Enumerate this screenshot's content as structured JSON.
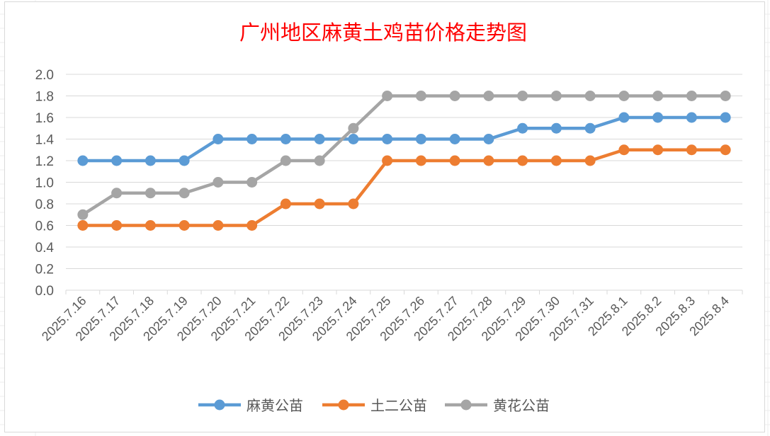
{
  "chart_data": {
    "type": "line",
    "title": "广州地区麻黄土鸡苗价格走势图",
    "xlabel": "",
    "ylabel": "",
    "ylim": [
      0,
      2.0
    ],
    "yticks": [
      "0.0",
      "0.2",
      "0.4",
      "0.6",
      "0.8",
      "1.0",
      "1.2",
      "1.4",
      "1.6",
      "1.8",
      "2.0"
    ],
    "grid": true,
    "legend": "bottom",
    "categories": [
      "2025.7.16",
      "2025.7.17",
      "2025.7.18",
      "2025.7.19",
      "2025.7.20",
      "2025.7.21",
      "2025.7.22",
      "2025.7.23",
      "2025.7.24",
      "2025.7.25",
      "2025.7.26",
      "2025.7.27",
      "2025.7.28",
      "2025.7.29",
      "2025.7.30",
      "2025.7.31",
      "2025.8.1",
      "2025.8.2",
      "2025.8.3",
      "2025.8.4"
    ],
    "series": [
      {
        "name": "麻黄公苗",
        "color": "#5b9bd5",
        "values": [
          1.2,
          1.2,
          1.2,
          1.2,
          1.4,
          1.4,
          1.4,
          1.4,
          1.4,
          1.4,
          1.4,
          1.4,
          1.4,
          1.5,
          1.5,
          1.5,
          1.6,
          1.6,
          1.6,
          1.6
        ]
      },
      {
        "name": "土二公苗",
        "color": "#ed7d31",
        "values": [
          0.6,
          0.6,
          0.6,
          0.6,
          0.6,
          0.6,
          0.8,
          0.8,
          0.8,
          1.2,
          1.2,
          1.2,
          1.2,
          1.2,
          1.2,
          1.2,
          1.3,
          1.3,
          1.3,
          1.3
        ]
      },
      {
        "name": "黄花公苗",
        "color": "#a5a5a5",
        "values": [
          0.7,
          0.9,
          0.9,
          0.9,
          1.0,
          1.0,
          1.2,
          1.2,
          1.5,
          1.8,
          1.8,
          1.8,
          1.8,
          1.8,
          1.8,
          1.8,
          1.8,
          1.8,
          1.8,
          1.8
        ]
      }
    ]
  }
}
